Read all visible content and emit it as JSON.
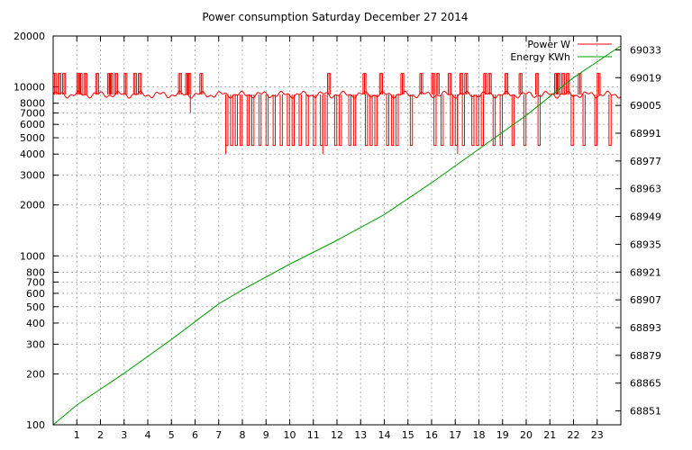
{
  "chart_data": {
    "type": "line",
    "title": "Power consumption Saturday December 27 2014",
    "xlabel": "",
    "ylabel": "",
    "x_ticks": [
      "1",
      "2",
      "3",
      "4",
      "5",
      "6",
      "7",
      "8",
      "9",
      "10",
      "11",
      "12",
      "13",
      "14",
      "15",
      "16",
      "17",
      "18",
      "19",
      "20",
      "21",
      "22",
      "23"
    ],
    "xlim": [
      0,
      24
    ],
    "y_left_ticks": [
      "100",
      "200",
      "300",
      "400",
      "500",
      "600",
      "700",
      "800",
      "1000",
      "2000",
      "3000",
      "4000",
      "5000",
      "6000",
      "7000",
      "8000",
      "10000",
      "20000"
    ],
    "y_left_scale": "log",
    "ylim_left": [
      100,
      20000
    ],
    "y_right_ticks": [
      "68851",
      "68865",
      "68879",
      "68893",
      "68907",
      "68921",
      "68935",
      "68949",
      "68963",
      "68977",
      "68991",
      "69005",
      "69019",
      "69033"
    ],
    "ylim_right": [
      68844,
      69040
    ],
    "grid": true,
    "legend_position": "top-right",
    "colors": {
      "power": "#ff0000",
      "energy": "#00a000"
    },
    "series": [
      {
        "name": "Power W",
        "axis": "left",
        "base_level": 9000,
        "high_level": 12000,
        "low_level": 4500,
        "burst_hours": [
          0.0,
          0.2,
          0.4,
          1.0,
          1.1,
          1.3,
          1.8,
          2.3,
          2.4,
          2.6,
          3.0,
          3.4,
          3.6,
          5.3,
          5.6,
          5.7,
          6.2,
          11.6,
          13.1,
          13.8,
          14.7,
          15.5,
          16.0,
          16.2,
          16.7,
          17.2,
          17.4,
          18.2,
          18.4,
          19.1,
          19.7,
          20.4,
          21.2,
          21.3,
          21.5,
          21.7,
          22.2,
          23.0
        ],
        "low_dip_hours": [
          7.3,
          7.5,
          7.7,
          7.9,
          8.2,
          8.4,
          8.7,
          9.0,
          9.3,
          9.6,
          9.9,
          10.1,
          10.4,
          10.7,
          11.0,
          11.3,
          11.5,
          11.9,
          12.1,
          12.5,
          12.7,
          13.2,
          13.4,
          13.6,
          14.1,
          14.3,
          14.5,
          15.1,
          16.1,
          16.4,
          16.8,
          17.0,
          17.3,
          17.7,
          17.9,
          18.1,
          18.6,
          18.9,
          19.4,
          19.9,
          20.5,
          21.9,
          22.4,
          22.9,
          23.5
        ],
        "min_dips": [
          {
            "x": 5.8,
            "y": 7000
          },
          {
            "x": 7.3,
            "y": 4000
          },
          {
            "x": 11.4,
            "y": 4000
          },
          {
            "x": 17.1,
            "y": 4000
          }
        ]
      },
      {
        "name": "Energy KWh",
        "axis": "right",
        "x": [
          0,
          1,
          3,
          5,
          7,
          8,
          10,
          12,
          14,
          16,
          18,
          20,
          22,
          24
        ],
        "y": [
          68844,
          68854,
          68870,
          68887,
          68905,
          68912,
          68925,
          68937,
          68950,
          68966,
          68983,
          69000,
          69019,
          69035
        ]
      }
    ]
  }
}
